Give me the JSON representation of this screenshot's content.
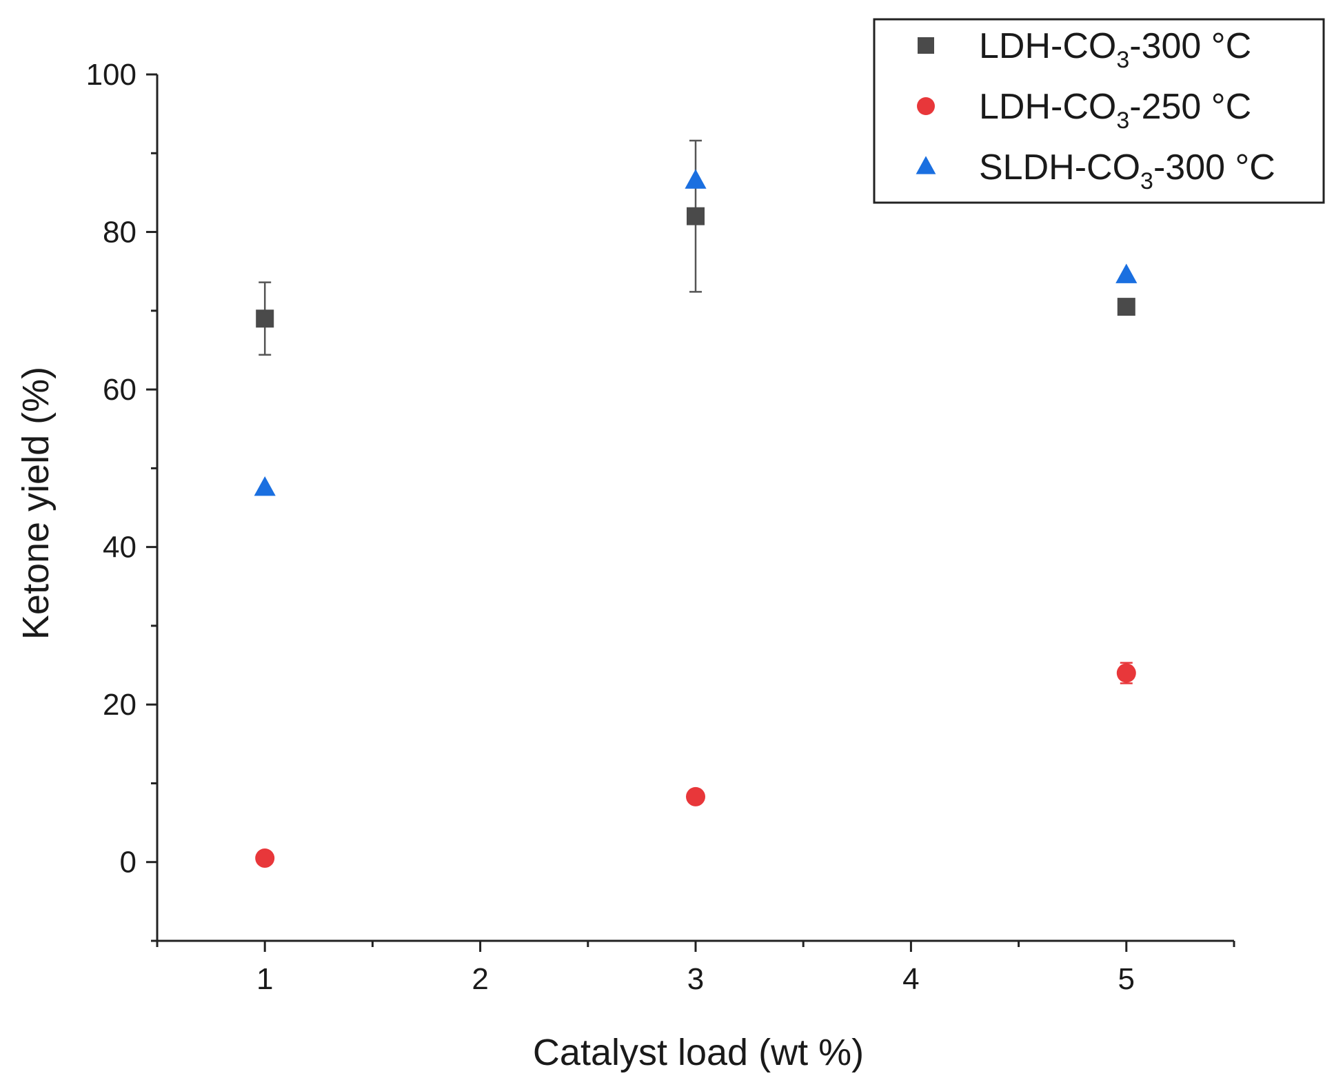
{
  "chart_data": {
    "type": "scatter",
    "title": "",
    "xlabel": "Catalyst load (wt %)",
    "ylabel": "Ketone yield (%)",
    "xlim": [
      0.5,
      5.5
    ],
    "ylim": [
      -10,
      100
    ],
    "x_ticks": [
      1,
      2,
      3,
      4,
      5
    ],
    "y_ticks": [
      0,
      20,
      40,
      60,
      80,
      100
    ],
    "x_minor_step": 0.5,
    "y_minor_step": 10,
    "grid": false,
    "legend_position": "top-right",
    "series": [
      {
        "name": "LDH-CO3-300 °C",
        "legend": {
          "base": "LDH-CO",
          "sub": "3",
          "tail": "-300 °C"
        },
        "marker": "square",
        "color": "#4a4a4a",
        "points": [
          {
            "x": 1,
            "y": 69,
            "err": 4.6
          },
          {
            "x": 3,
            "y": 82,
            "err": 9.6
          },
          {
            "x": 5,
            "y": 70.5,
            "err": 0
          }
        ]
      },
      {
        "name": "LDH-CO3-250 °C",
        "legend": {
          "base": "LDH-CO",
          "sub": "3",
          "tail": "-250 °C"
        },
        "marker": "circle",
        "color": "#e8373a",
        "points": [
          {
            "x": 1,
            "y": 0.5,
            "err": 0
          },
          {
            "x": 3,
            "y": 8.3,
            "err": 0
          },
          {
            "x": 5,
            "y": 24,
            "err": 1.3
          }
        ]
      },
      {
        "name": "SLDH-CO3-300 °C",
        "legend": {
          "base": "SLDH-CO",
          "sub": "3",
          "tail": "-300 °C"
        },
        "marker": "triangle",
        "color": "#1a6fe0",
        "points": [
          {
            "x": 1,
            "y": 47.5,
            "err": 0
          },
          {
            "x": 3,
            "y": 86.5,
            "err": 0
          },
          {
            "x": 5,
            "y": 74.5,
            "err": 0
          }
        ]
      }
    ]
  }
}
